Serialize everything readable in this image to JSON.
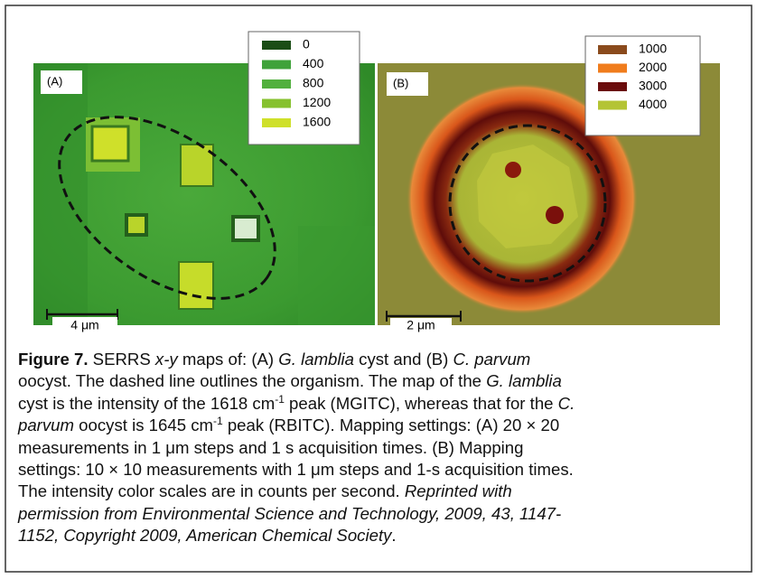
{
  "figure": {
    "panels": [
      {
        "label": "(A)",
        "scale_bar": "4 μm",
        "legend": [
          {
            "value": 0,
            "color": "#1b4d16"
          },
          {
            "value": 400,
            "color": "#3fa23a"
          },
          {
            "value": 800,
            "color": "#52b03e"
          },
          {
            "value": 1200,
            "color": "#86c12e"
          },
          {
            "value": 1600,
            "color": "#cfe02a"
          }
        ]
      },
      {
        "label": "(B)",
        "scale_bar": "2 μm",
        "legend": [
          {
            "value": 1000,
            "color": "#8a4a1c"
          },
          {
            "value": 2000,
            "color": "#f07c1c"
          },
          {
            "value": 3000,
            "color": "#6a0c0c"
          },
          {
            "value": 4000,
            "color": "#b4c434"
          }
        ]
      }
    ],
    "caption": [
      [
        {
          "text": "Figure 7.",
          "bold": true
        },
        {
          "text": " SERRS "
        },
        {
          "text": "x-y",
          "italic": true
        },
        {
          "text": " maps of: (A) "
        },
        {
          "text": "G. lamblia",
          "italic": true
        },
        {
          "text": " cyst and (B) "
        },
        {
          "text": "C. parvum",
          "italic": true
        }
      ],
      [
        {
          "text": "oocyst. The dashed line outlines the organism. The map of the "
        },
        {
          "text": "G. lamblia",
          "italic": true
        }
      ],
      [
        {
          "text": "cyst is the intensity of the 1618 cm"
        },
        {
          "text": "-1",
          "sup": true
        },
        {
          "text": " peak (MGITC), whereas that for the "
        },
        {
          "text": "C.",
          "italic": true
        }
      ],
      [
        {
          "text": "parvum",
          "italic": true
        },
        {
          "text": " oocyst is 1645 cm"
        },
        {
          "text": "-1",
          "sup": true
        },
        {
          "text": " peak (RBITC). Mapping settings: (A) 20 × 20"
        }
      ],
      [
        {
          "text": "measurements in 1 μm steps and 1 s acquisition times. (B) Mapping"
        }
      ],
      [
        {
          "text": "settings: 10 × 10 measurements with 1 μm steps and 1-s acquisition times."
        }
      ],
      [
        {
          "text": "The intensity color scales are in counts per second. "
        },
        {
          "text": "Reprinted with",
          "italic": true
        }
      ],
      [
        {
          "text": "permission from Environmental Science and Technology, 2009, 43, 1147-",
          "italic": true
        }
      ],
      [
        {
          "text": "1152, Copyright 2009, American Chemical Society",
          "italic": true
        },
        {
          "text": "."
        }
      ]
    ]
  }
}
